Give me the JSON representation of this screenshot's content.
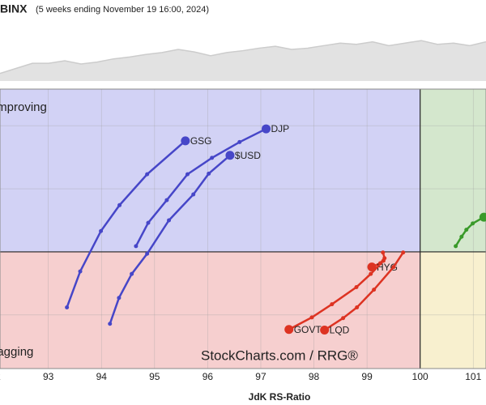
{
  "chart_data": {
    "type": "rrg",
    "title": "BINX",
    "subtitle": "(5 weeks ending November 19 16:00, 2024)",
    "x_label": "JdK RS-Ratio",
    "watermark": "StockCharts.com / RRG®",
    "quadrants": {
      "improving": "Improving",
      "lagging": "Lagging"
    },
    "benchmark": {
      "color": "#cccccc",
      "ylim": [
        0,
        100
      ],
      "values": [
        12,
        20,
        28,
        28,
        32,
        27,
        30,
        35,
        38,
        42,
        45,
        50,
        46,
        40,
        45,
        48,
        52,
        55,
        50,
        52,
        56,
        60,
        58,
        62,
        56,
        60,
        64,
        58,
        60,
        56,
        62
      ]
    },
    "xlim": [
      92.09,
      101.24
    ],
    "ylim": [
      98.15,
      102.58
    ],
    "xticks": [
      92,
      93,
      94,
      95,
      96,
      97,
      98,
      99,
      100,
      101
    ],
    "yticks": [
      99,
      100,
      101,
      102
    ],
    "center": 100,
    "grid": true,
    "series": [
      {
        "name": "GSG",
        "color": "#4646c8",
        "x": [
          93.35,
          93.6,
          93.99,
          94.34,
          94.86,
          95.58
        ],
        "values": [
          99.12,
          99.69,
          100.33,
          100.74,
          101.23,
          101.76
        ]
      },
      {
        "name": "$USD",
        "color": "#4646c8",
        "x": [
          94.16,
          94.33,
          94.57,
          94.86,
          95.27,
          95.73,
          96.02,
          96.42
        ],
        "values": [
          98.86,
          99.27,
          99.65,
          99.97,
          100.5,
          100.91,
          101.24,
          101.53
        ]
      },
      {
        "name": "DJP",
        "color": "#4646c8",
        "x": [
          94.65,
          94.88,
          95.23,
          95.62,
          96.08,
          96.6,
          97.1
        ],
        "values": [
          100.09,
          100.46,
          100.82,
          101.23,
          101.49,
          101.74,
          101.95
        ]
      },
      {
        "name": "HYG",
        "color": "#dd3322",
        "x": [
          99.3,
          99.33,
          99.25,
          99.09
        ],
        "values": [
          99.99,
          99.9,
          99.82,
          99.76
        ]
      },
      {
        "name": "GOVT",
        "color": "#dd3322",
        "x": [
          99.31,
          99.07,
          98.8,
          98.34,
          97.96,
          97.53
        ],
        "values": [
          99.86,
          99.65,
          99.44,
          99.17,
          98.96,
          98.77
        ]
      },
      {
        "name": "LQD",
        "color": "#dd3322",
        "x": [
          99.68,
          99.5,
          99.13,
          98.81,
          98.55,
          98.2
        ],
        "values": [
          99.99,
          99.76,
          99.4,
          99.12,
          98.95,
          98.76
        ]
      },
      {
        "color": "#3a9a2a",
        "x": [
          100.67,
          100.78,
          100.87,
          100.99,
          101.2
        ],
        "values": [
          100.09,
          100.24,
          100.35,
          100.45,
          100.55
        ]
      }
    ]
  }
}
